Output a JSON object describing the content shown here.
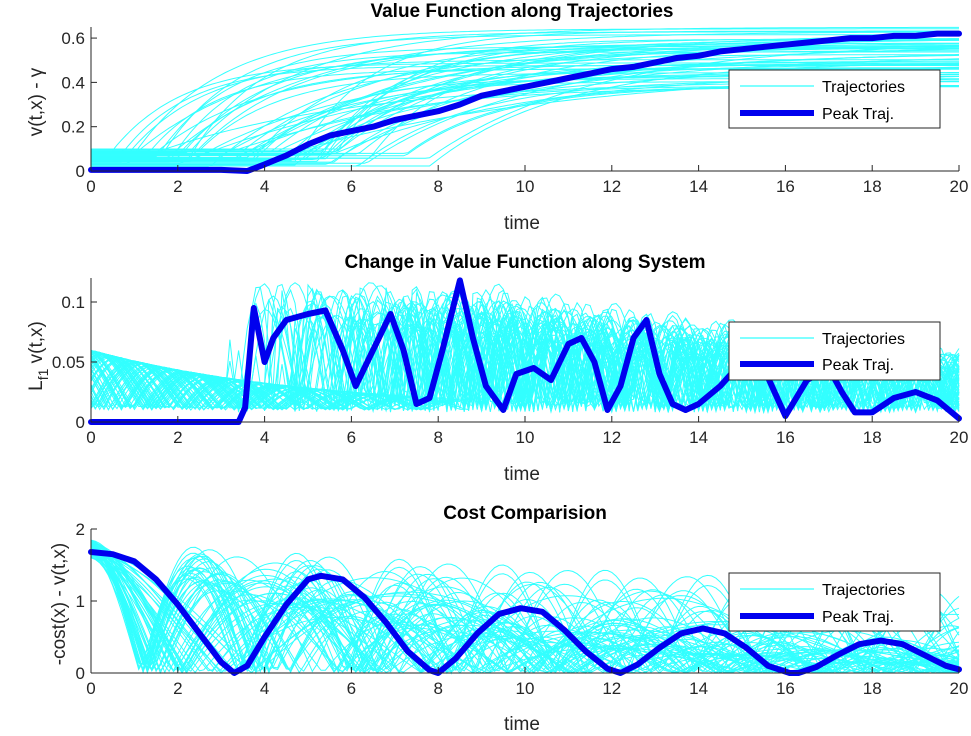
{
  "colors": {
    "trajectories": "#33ffff",
    "peak": "#0000ee",
    "axis": "#262626"
  },
  "chart_data": [
    {
      "type": "line",
      "title": "Value Function along Trajectories",
      "xlabel": "time",
      "ylabel": "v(t,x) - γ",
      "xlim": [
        0,
        20
      ],
      "ylim": [
        0,
        0.65
      ],
      "xticks": [
        "0",
        "2",
        "4",
        "6",
        "8",
        "10",
        "12",
        "14",
        "16",
        "18",
        "20"
      ],
      "yticks": [
        "0",
        "0.2",
        "0.4",
        "0.6"
      ],
      "legend": {
        "placement": "right",
        "entries": [
          "Trajectories",
          "Peak Traj."
        ]
      },
      "series": [
        {
          "name": "Peak Traj.",
          "x": [
            0,
            2,
            3,
            3.6,
            4,
            4.5,
            5,
            5.5,
            6,
            6.5,
            7,
            7.5,
            8,
            8.5,
            9,
            9.5,
            10,
            10.5,
            11,
            11.5,
            12,
            12.5,
            13,
            13.5,
            14,
            14.5,
            15,
            15.5,
            16,
            16.5,
            17,
            17.5,
            18,
            18.5,
            19,
            19.5,
            20
          ],
          "y": [
            0.005,
            0.005,
            0.005,
            0.0,
            0.03,
            0.07,
            0.12,
            0.16,
            0.18,
            0.2,
            0.23,
            0.25,
            0.27,
            0.3,
            0.34,
            0.36,
            0.38,
            0.4,
            0.42,
            0.44,
            0.46,
            0.47,
            0.49,
            0.51,
            0.52,
            0.54,
            0.55,
            0.56,
            0.57,
            0.58,
            0.59,
            0.6,
            0.6,
            0.61,
            0.61,
            0.62,
            0.62
          ]
        }
      ]
    },
    {
      "type": "line",
      "title": "Change in Value Function along System",
      "xlabel": "time",
      "ylabel": "L",
      "ylabel_sub": "f1",
      "ylabel_rest": "v(t,x)",
      "xlim": [
        0,
        20
      ],
      "ylim": [
        0,
        0.12
      ],
      "xticks": [
        "0",
        "2",
        "4",
        "6",
        "8",
        "10",
        "12",
        "14",
        "16",
        "18",
        "20"
      ],
      "yticks": [
        "0",
        "0.05",
        "0.1"
      ],
      "legend": {
        "placement": "right",
        "entries": [
          "Trajectories",
          "Peak Traj."
        ]
      },
      "series": [
        {
          "name": "Peak Traj.",
          "x": [
            0,
            3.2,
            3.4,
            3.55,
            3.75,
            4.0,
            4.2,
            4.5,
            5.0,
            5.4,
            5.8,
            6.1,
            6.5,
            6.9,
            7.2,
            7.5,
            7.8,
            8.1,
            8.5,
            8.8,
            9.1,
            9.5,
            9.8,
            10.2,
            10.6,
            11.0,
            11.3,
            11.6,
            11.9,
            12.2,
            12.5,
            12.8,
            13.1,
            13.4,
            13.7,
            14.0,
            14.5,
            15.0,
            15.5,
            16.0,
            16.5,
            17.0,
            17.3,
            17.6,
            18.0,
            18.5,
            19.0,
            19.5,
            20.0
          ],
          "y": [
            0,
            0,
            0,
            0.012,
            0.095,
            0.05,
            0.07,
            0.085,
            0.09,
            0.093,
            0.06,
            0.03,
            0.06,
            0.09,
            0.06,
            0.015,
            0.02,
            0.06,
            0.118,
            0.07,
            0.03,
            0.01,
            0.04,
            0.045,
            0.035,
            0.065,
            0.07,
            0.05,
            0.01,
            0.03,
            0.07,
            0.085,
            0.04,
            0.015,
            0.01,
            0.015,
            0.03,
            0.05,
            0.045,
            0.005,
            0.035,
            0.045,
            0.025,
            0.008,
            0.008,
            0.02,
            0.025,
            0.018,
            0.003
          ]
        }
      ]
    },
    {
      "type": "line",
      "title": "Cost Comparision",
      "xlabel": "time",
      "ylabel": "-cost(x) - v(t,x)",
      "xlim": [
        0,
        20
      ],
      "ylim": [
        0,
        2
      ],
      "xticks": [
        "0",
        "2",
        "4",
        "6",
        "8",
        "10",
        "12",
        "14",
        "16",
        "18",
        "20"
      ],
      "yticks": [
        "0",
        "1",
        "2"
      ],
      "legend": {
        "placement": "right",
        "entries": [
          "Trajectories",
          "Peak Traj."
        ]
      },
      "series": [
        {
          "name": "Peak Traj.",
          "x": [
            0,
            0.5,
            1.0,
            1.5,
            2.0,
            2.5,
            3.0,
            3.3,
            3.6,
            4.0,
            4.5,
            5.0,
            5.3,
            5.8,
            6.3,
            6.8,
            7.3,
            7.8,
            8.0,
            8.4,
            8.9,
            9.4,
            9.9,
            10.4,
            10.9,
            11.4,
            11.9,
            12.2,
            12.6,
            13.1,
            13.6,
            14.1,
            14.6,
            15.1,
            15.6,
            16.1,
            16.3,
            16.7,
            17.2,
            17.7,
            18.2,
            18.7,
            19.2,
            19.7,
            20.0
          ],
          "y": [
            1.68,
            1.65,
            1.55,
            1.3,
            0.95,
            0.55,
            0.15,
            0.0,
            0.1,
            0.5,
            0.95,
            1.3,
            1.35,
            1.3,
            1.05,
            0.7,
            0.3,
            0.04,
            0.0,
            0.2,
            0.55,
            0.82,
            0.9,
            0.85,
            0.6,
            0.3,
            0.06,
            0.0,
            0.12,
            0.35,
            0.55,
            0.62,
            0.55,
            0.35,
            0.1,
            0.0,
            0.0,
            0.08,
            0.25,
            0.4,
            0.45,
            0.4,
            0.25,
            0.1,
            0.05
          ]
        }
      ]
    }
  ]
}
